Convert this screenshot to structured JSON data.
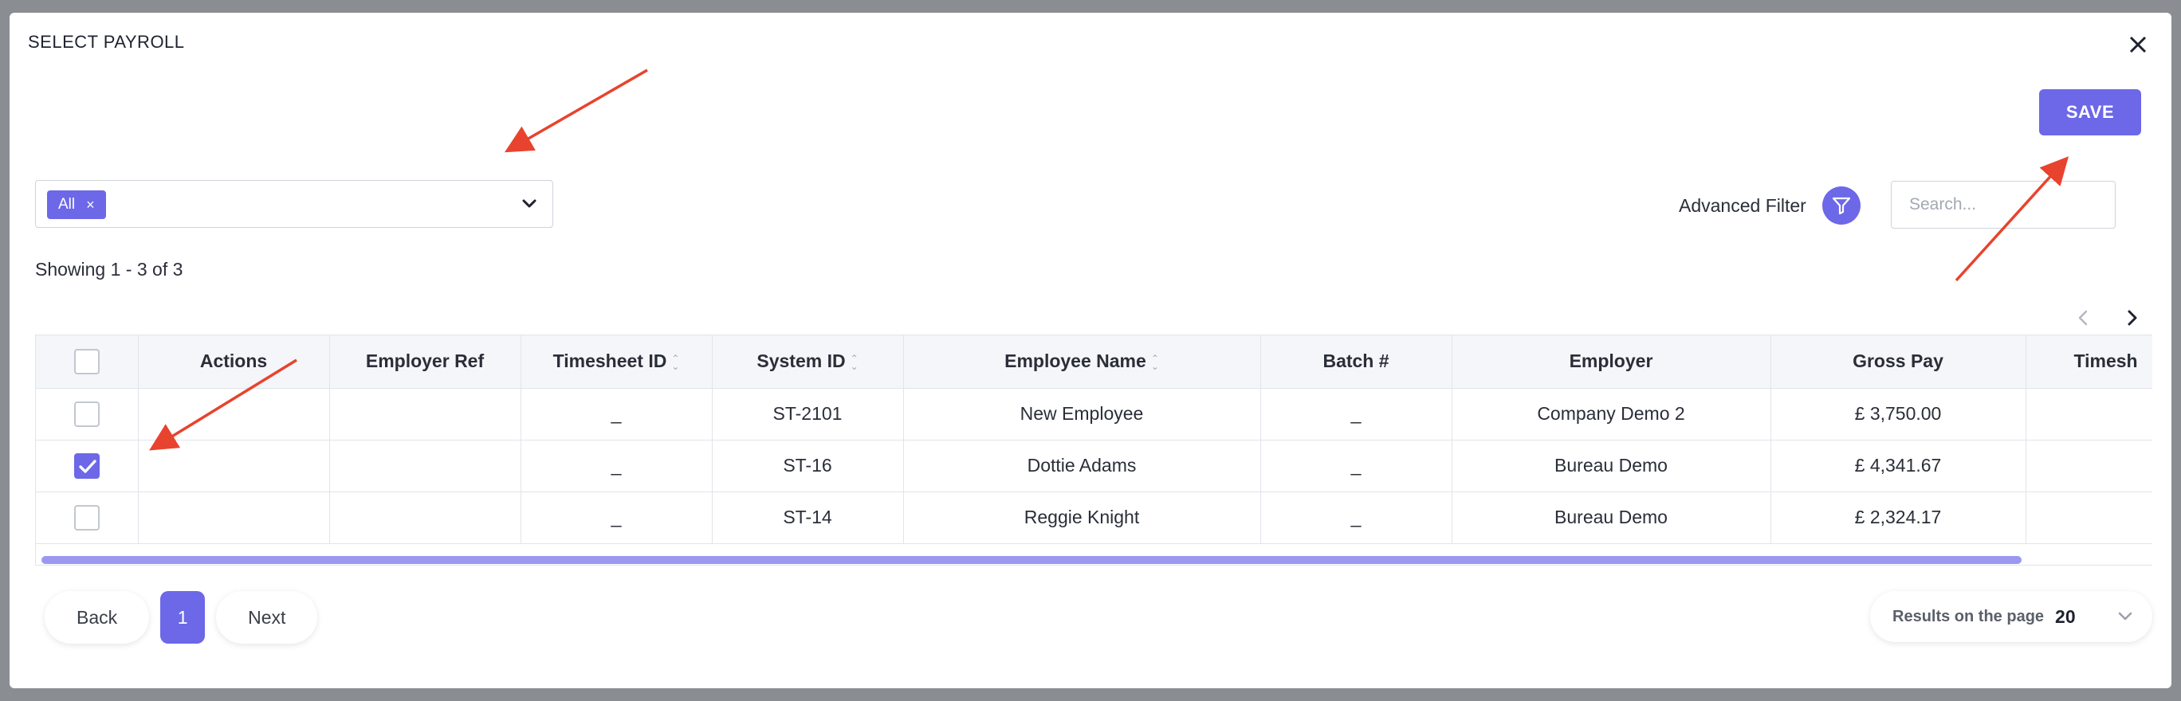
{
  "modal": {
    "title": "SELECT PAYROLL",
    "save_label": "SAVE",
    "filter": {
      "chips": [
        "All"
      ],
      "chip_remove": "×"
    },
    "advanced_filter_label": "Advanced Filter",
    "search_placeholder": "Search...",
    "showing_text": "Showing 1 - 3 of 3"
  },
  "table": {
    "columns": [
      "",
      "Actions",
      "Employer Ref",
      "Timesheet ID",
      "System ID",
      "Employee Name",
      "Batch #",
      "Employer",
      "Gross Pay",
      "Timesh"
    ],
    "rows": [
      {
        "checked": false,
        "actions": "",
        "employer_ref": "",
        "timesheet_id": "_",
        "system_id": "ST-2101",
        "employee_name": "New Employee",
        "batch": "_",
        "employer": "Company Demo 2",
        "gross_pay": "£ 3,750.00",
        "timesheet": ""
      },
      {
        "checked": true,
        "actions": "",
        "employer_ref": "",
        "timesheet_id": "_",
        "system_id": "ST-16",
        "employee_name": "Dottie Adams",
        "batch": "_",
        "employer": "Bureau Demo",
        "gross_pay": "£ 4,341.67",
        "timesheet": ""
      },
      {
        "checked": false,
        "actions": "",
        "employer_ref": "",
        "timesheet_id": "_",
        "system_id": "ST-14",
        "employee_name": "Reggie Knight",
        "batch": "_",
        "employer": "Bureau Demo",
        "gross_pay": "£ 2,324.17",
        "timesheet": ""
      }
    ]
  },
  "pagination": {
    "back_label": "Back",
    "current_page": "1",
    "next_label": "Next",
    "results_label": "Results on the page",
    "results_value": "20"
  },
  "colors": {
    "accent": "#6c68e8",
    "annotation_arrow": "#e8432e",
    "overlay": "#8a8d91"
  }
}
